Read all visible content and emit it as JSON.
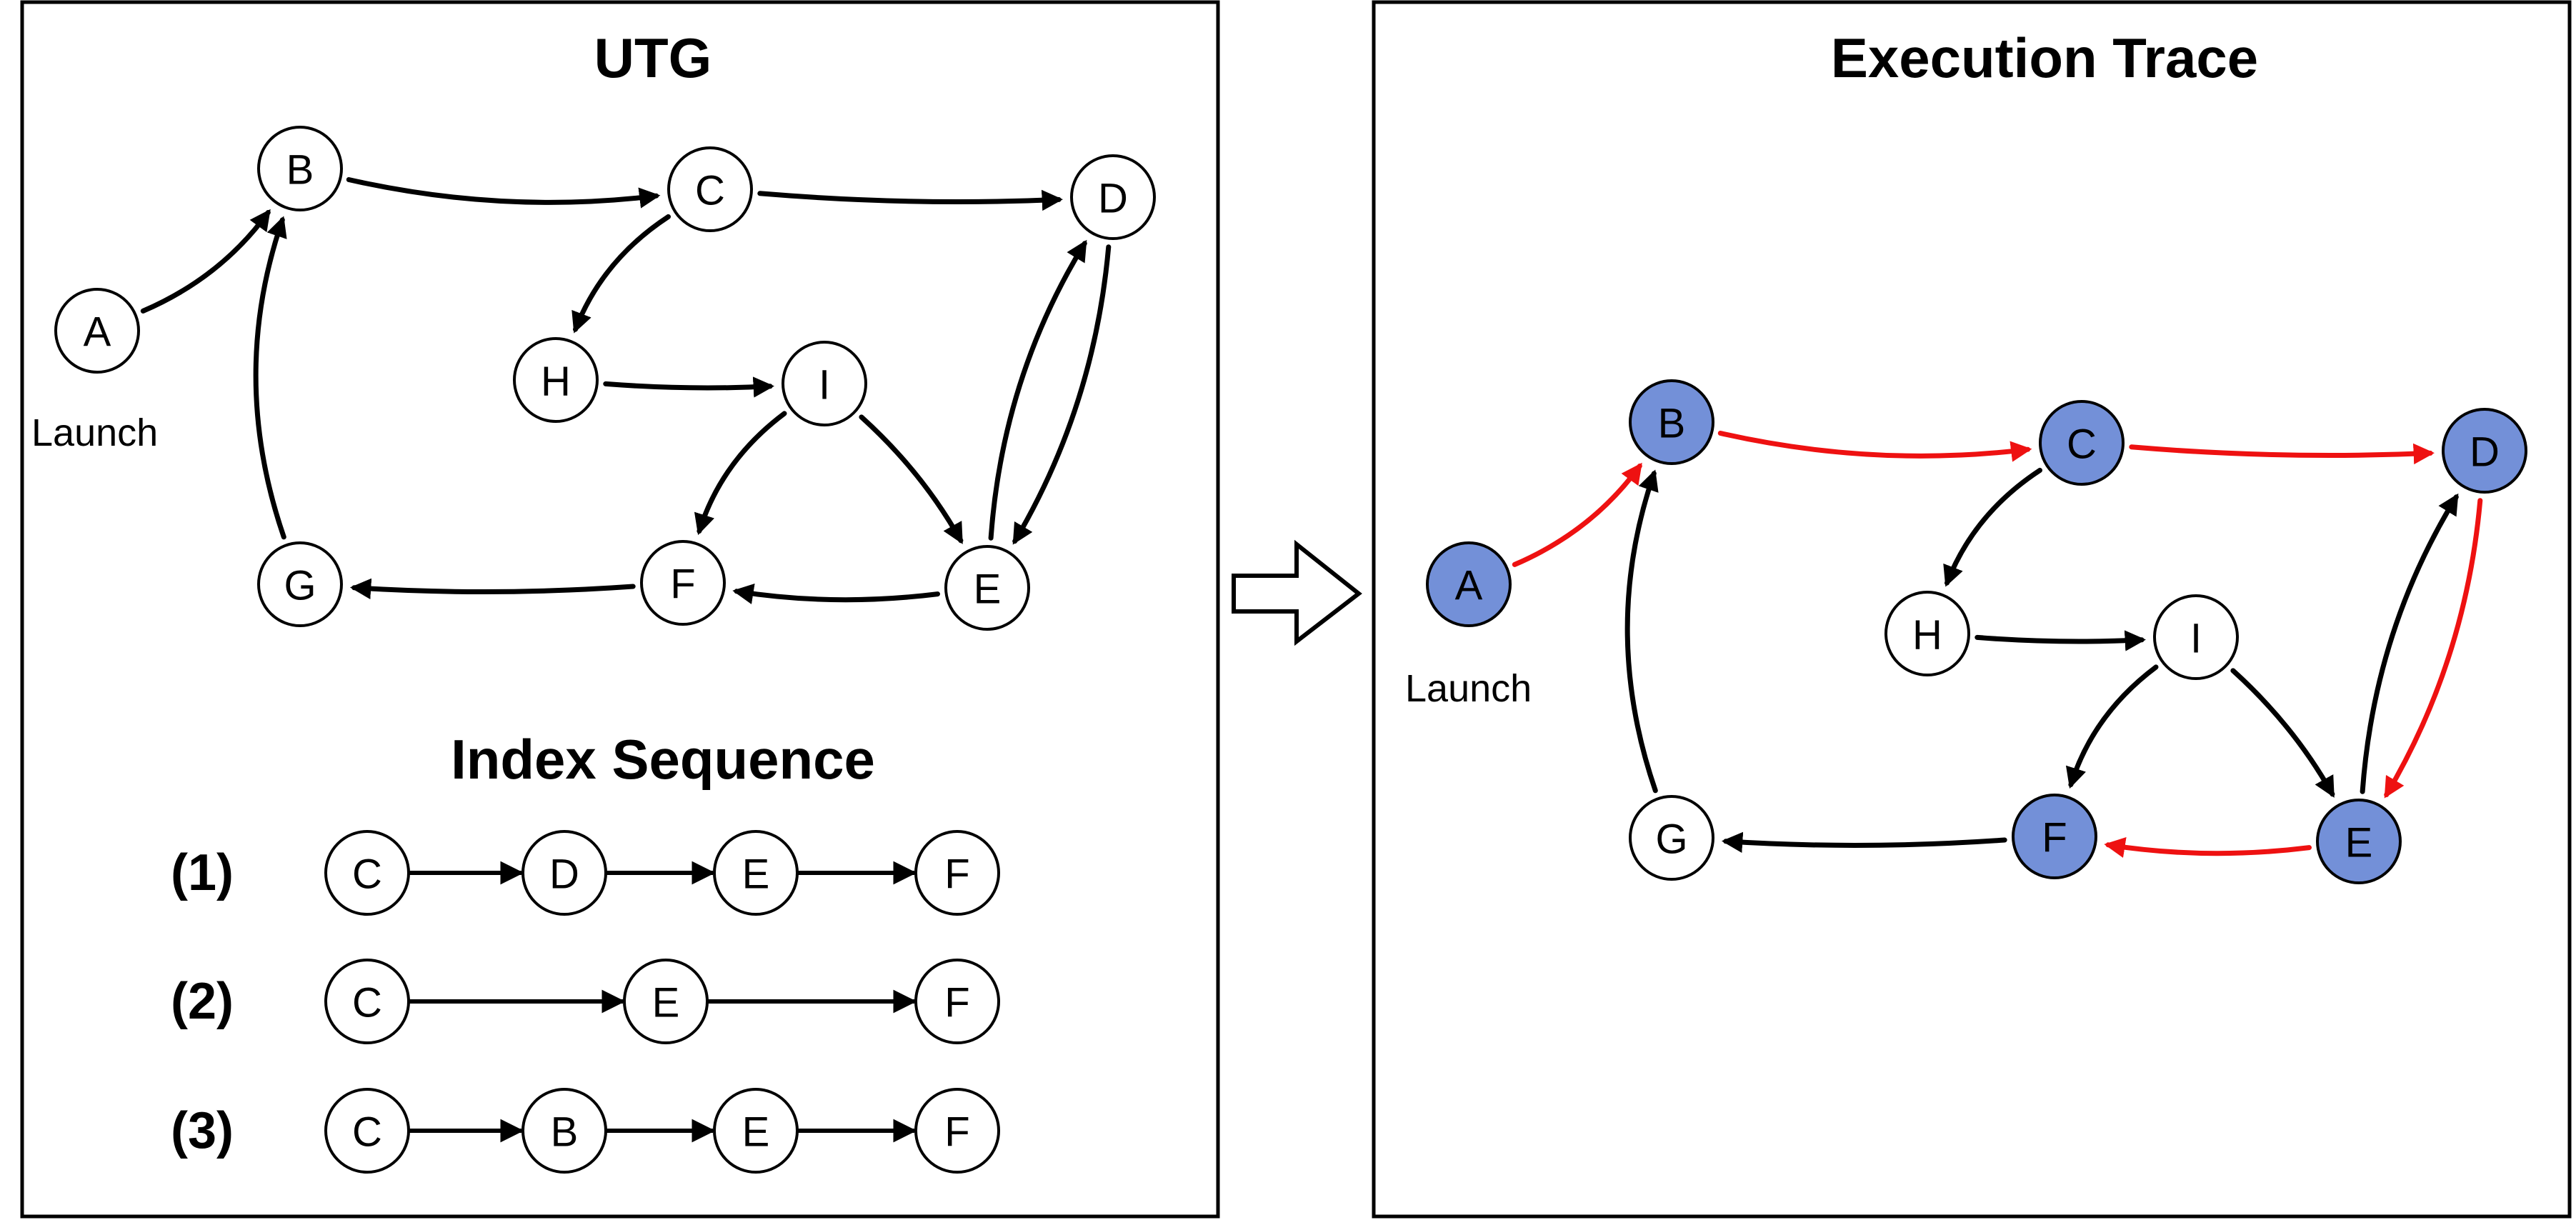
{
  "utg_panel": {
    "title": "UTG",
    "launch_label": "Launch",
    "nodes": [
      "A",
      "B",
      "C",
      "D",
      "E",
      "F",
      "G",
      "H",
      "I"
    ],
    "edges": [
      [
        "A",
        "B"
      ],
      [
        "B",
        "C"
      ],
      [
        "C",
        "D"
      ],
      [
        "C",
        "H"
      ],
      [
        "H",
        "I"
      ],
      [
        "I",
        "F"
      ],
      [
        "I",
        "E"
      ],
      [
        "D",
        "E"
      ],
      [
        "E",
        "D"
      ],
      [
        "E",
        "F"
      ],
      [
        "F",
        "G"
      ],
      [
        "G",
        "B"
      ]
    ]
  },
  "index_sequence": {
    "title": "Index Sequence",
    "rows": [
      {
        "label": "(1)",
        "nodes": [
          "C",
          "D",
          "E",
          "F"
        ]
      },
      {
        "label": "(2)",
        "nodes": [
          "C",
          "E",
          "F"
        ]
      },
      {
        "label": "(3)",
        "nodes": [
          "C",
          "B",
          "E",
          "F"
        ]
      }
    ]
  },
  "trace_panel": {
    "title": "Execution Trace",
    "launch_label": "Launch",
    "nodes": [
      "A",
      "B",
      "C",
      "D",
      "E",
      "F",
      "G",
      "H",
      "I"
    ],
    "highlighted_nodes": [
      "A",
      "B",
      "C",
      "D",
      "E",
      "F"
    ],
    "trace_edges": [
      [
        "A",
        "B"
      ],
      [
        "B",
        "C"
      ],
      [
        "C",
        "D"
      ],
      [
        "D",
        "E"
      ],
      [
        "E",
        "F"
      ]
    ],
    "colors": {
      "highlight_fill": "#7390d8",
      "trace_edge": "#ee1111",
      "default_edge": "#000000"
    }
  }
}
